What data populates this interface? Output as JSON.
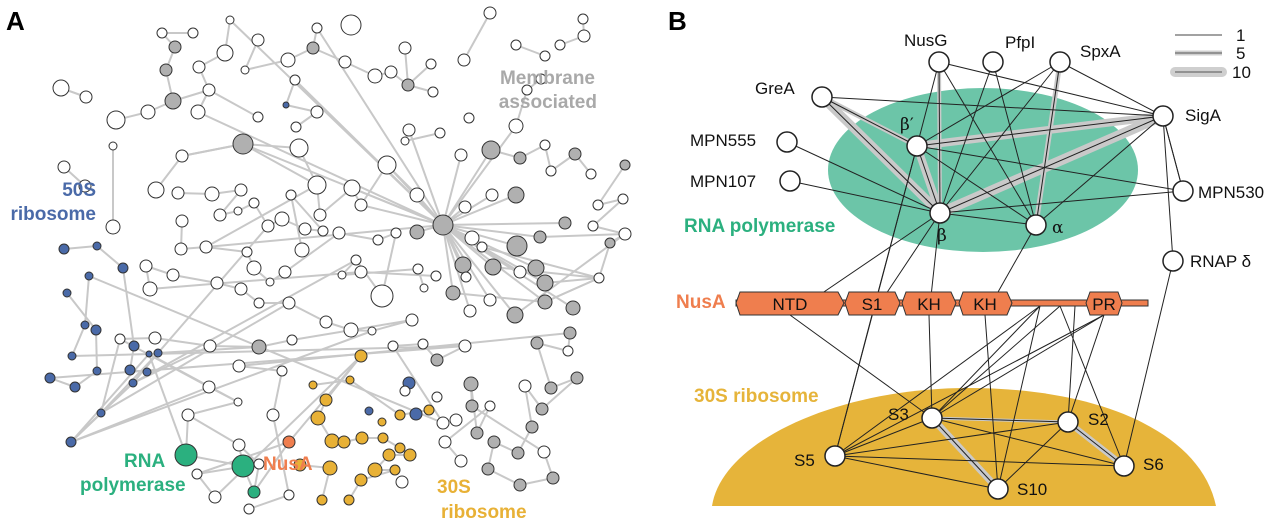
{
  "panel_a": {
    "letter": "A",
    "groups": {
      "membrane": [
        "Membrane",
        "associated"
      ],
      "ribosome50s": [
        "50S",
        "ribosome"
      ],
      "rnap": [
        "RNA",
        "polymerase"
      ],
      "nusa": "NusA",
      "ribosome30s": [
        "30S",
        "ribosome"
      ]
    }
  },
  "panel_b": {
    "letter": "B",
    "legend": [
      "1",
      "5",
      "10"
    ],
    "rnap_label": "RNA polymerase",
    "ribosome_label": "30S ribosome",
    "nusa_label": "NusA",
    "nusa_domains": [
      "NTD",
      "S1",
      "KH",
      "KH",
      "PR"
    ],
    "nodes": {
      "NusG": "NusG",
      "PfpI": "PfpI",
      "SpxA": "SpxA",
      "GreA": "GreA",
      "SigA": "SigA",
      "MPN555": "MPN555",
      "MPN107": "MPN107",
      "MPN530": "MPN530",
      "RNAPd": "RNAP δ",
      "bprime": "β′",
      "beta": "β",
      "alpha": "α",
      "S3": "S3",
      "S2": "S2",
      "S5": "S5",
      "S6": "S6",
      "S10": "S10"
    }
  },
  "colors": {
    "edge": "#c8c8c8",
    "membrane": "#b0b0b0",
    "ribosome50s": "#4a6aa8",
    "rnap": "#2bb07f",
    "nusa": "#ef7e4e",
    "ribosome30s": "#e8b136",
    "rnap_ellipse": "#6cc5a8",
    "ribosome_dome": "#e6b43a"
  }
}
